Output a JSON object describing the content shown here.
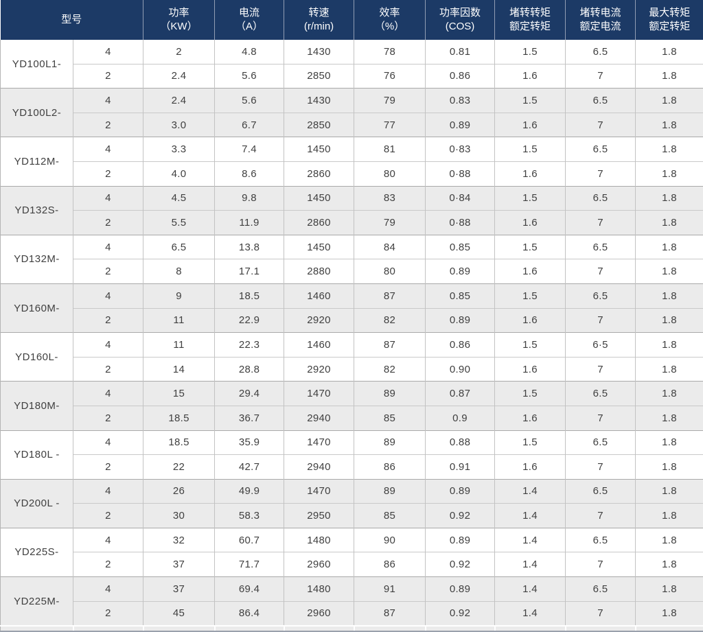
{
  "theme": {
    "header_bg": "#1c3a66",
    "header_text": "#ffffff",
    "row_bg": "#ffffff",
    "row_alt_bg": "#ebebeb",
    "data_text": "#3f3f3f",
    "grid_line": "#c2c2c2",
    "group_divider": "#a9a9a9"
  },
  "table": {
    "model_header": "型号",
    "column_headers": [
      {
        "line1": "功率",
        "line2": "（KW）"
      },
      {
        "line1": "电流",
        "line2": "（A）"
      },
      {
        "line1": "转速",
        "line2": "(r/min)"
      },
      {
        "line1": "效率",
        "line2": "（%）"
      },
      {
        "line1": "功率因数",
        "line2": "(COS)"
      },
      {
        "line1": "堵转转矩",
        "line2": "额定转矩"
      },
      {
        "line1": "堵转电流",
        "line2": "额定电流"
      },
      {
        "line1": "最大转矩",
        "line2": "额定转矩"
      }
    ],
    "groups": [
      {
        "model": "YD100L1-",
        "shaded": false,
        "rows": [
          [
            "4",
            "2",
            "4.8",
            "1430",
            "78",
            "0.81",
            "1.5",
            "6.5",
            "1.8"
          ],
          [
            "2",
            "2.4",
            "5.6",
            "2850",
            "76",
            "0.86",
            "1.6",
            "7",
            "1.8"
          ]
        ]
      },
      {
        "model": "YD100L2-",
        "shaded": true,
        "rows": [
          [
            "4",
            "2.4",
            "5.6",
            "1430",
            "79",
            "0.83",
            "1.5",
            "6.5",
            "1.8"
          ],
          [
            "2",
            "3.0",
            "6.7",
            "2850",
            "77",
            "0.89",
            "1.6",
            "7",
            "1.8"
          ]
        ]
      },
      {
        "model": "YD112M-",
        "shaded": false,
        "rows": [
          [
            "4",
            "3.3",
            "7.4",
            "1450",
            "81",
            "0·83",
            "1.5",
            "6.5",
            "1.8"
          ],
          [
            "2",
            "4.0",
            "8.6",
            "2860",
            "80",
            "0·88",
            "1.6",
            "7",
            "1.8"
          ]
        ]
      },
      {
        "model": "YD132S-",
        "shaded": true,
        "rows": [
          [
            "4",
            "4.5",
            "9.8",
            "1450",
            "83",
            "0·84",
            "1.5",
            "6.5",
            "1.8"
          ],
          [
            "2",
            "5.5",
            "11.9",
            "2860",
            "79",
            "0·88",
            "1.6",
            "7",
            "1.8"
          ]
        ]
      },
      {
        "model": "YD132M-",
        "shaded": false,
        "rows": [
          [
            "4",
            "6.5",
            "13.8",
            "1450",
            "84",
            "0.85",
            "1.5",
            "6.5",
            "1.8"
          ],
          [
            "2",
            "8",
            "17.1",
            "2880",
            "80",
            "0.89",
            "1.6",
            "7",
            "1.8"
          ]
        ]
      },
      {
        "model": "YD160M-",
        "shaded": true,
        "rows": [
          [
            "4",
            "9",
            "18.5",
            "1460",
            "87",
            "0.85",
            "1.5",
            "6.5",
            "1.8"
          ],
          [
            "2",
            "11",
            "22.9",
            "2920",
            "82",
            "0.89",
            "1.6",
            "7",
            "1.8"
          ]
        ]
      },
      {
        "model": "YD160L-",
        "shaded": false,
        "rows": [
          [
            "4",
            "11",
            "22.3",
            "1460",
            "87",
            "0.86",
            "1.5",
            "6·5",
            "1.8"
          ],
          [
            "2",
            "14",
            "28.8",
            "2920",
            "82",
            "0.90",
            "1.6",
            "7",
            "1.8"
          ]
        ]
      },
      {
        "model": "YD180M-",
        "shaded": true,
        "rows": [
          [
            "4",
            "15",
            "29.4",
            "1470",
            "89",
            "0.87",
            "1.5",
            "6.5",
            "1.8"
          ],
          [
            "2",
            "18.5",
            "36.7",
            "2940",
            "85",
            "0.9",
            "1.6",
            "7",
            "1.8"
          ]
        ]
      },
      {
        "model": "YD180L -",
        "shaded": false,
        "rows": [
          [
            "4",
            "18.5",
            "35.9",
            "1470",
            "89",
            "0.88",
            "1.5",
            "6.5",
            "1.8"
          ],
          [
            "2",
            "22",
            "42.7",
            "2940",
            "86",
            "0.91",
            "1.6",
            "7",
            "1.8"
          ]
        ]
      },
      {
        "model": "YD200L -",
        "shaded": true,
        "rows": [
          [
            "4",
            "26",
            "49.9",
            "1470",
            "89",
            "0.89",
            "1.4",
            "6.5",
            "1.8"
          ],
          [
            "2",
            "30",
            "58.3",
            "2950",
            "85",
            "0.92",
            "1.4",
            "7",
            "1.8"
          ]
        ]
      },
      {
        "model": "YD225S-",
        "shaded": false,
        "rows": [
          [
            "4",
            "32",
            "60.7",
            "1480",
            "90",
            "0.89",
            "1.4",
            "6.5",
            "1.8"
          ],
          [
            "2",
            "37",
            "71.7",
            "2960",
            "86",
            "0.92",
            "1.4",
            "7",
            "1.8"
          ]
        ]
      },
      {
        "model": "YD225M-",
        "shaded": true,
        "rows": [
          [
            "4",
            "37",
            "69.4",
            "1480",
            "91",
            "0.89",
            "1.4",
            "6.5",
            "1.8"
          ],
          [
            "2",
            "45",
            "86.4",
            "2960",
            "87",
            "0.92",
            "1.4",
            "7",
            "1.8"
          ]
        ]
      }
    ]
  }
}
